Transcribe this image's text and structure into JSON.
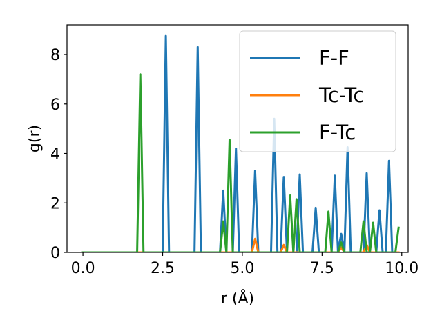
{
  "chart_data": {
    "type": "line",
    "title": "",
    "xlabel": "r (Å)",
    "ylabel": "g(r)",
    "xlim": [
      -0.5,
      10.2
    ],
    "ylim": [
      0,
      9.2
    ],
    "xticks": [
      0.0,
      2.5,
      5.0,
      7.5,
      10.0
    ],
    "xtick_labels": [
      "0.0",
      "2.5",
      "5.0",
      "7.5",
      "10.0"
    ],
    "yticks": [
      0,
      2,
      4,
      6,
      8
    ],
    "ytick_labels": [
      "0",
      "2",
      "4",
      "6",
      "8"
    ],
    "grid": false,
    "legend_position": "top-right",
    "series": [
      {
        "name": "F-F",
        "color": "#1f77b4",
        "x": [
          0.0,
          2.5,
          2.6,
          2.7,
          3.5,
          3.6,
          3.7,
          4.3,
          4.4,
          4.5,
          4.7,
          4.8,
          4.9,
          5.3,
          5.4,
          5.5,
          5.9,
          6.0,
          6.1,
          6.2,
          6.3,
          6.4,
          6.7,
          6.8,
          6.9,
          7.2,
          7.3,
          7.4,
          7.8,
          7.9,
          8.0,
          8.1,
          8.2,
          8.3,
          8.4,
          8.8,
          8.9,
          9.0,
          9.2,
          9.3,
          9.4,
          9.5,
          9.6,
          9.7
        ],
        "y": [
          0,
          0,
          8.75,
          0,
          0,
          8.3,
          0,
          0,
          2.5,
          0,
          0,
          4.2,
          0,
          0,
          3.3,
          0,
          0,
          5.4,
          0,
          0,
          3.05,
          0,
          0,
          3.15,
          0,
          0,
          1.8,
          0,
          0,
          3.1,
          0,
          0.75,
          0,
          4.25,
          0,
          0,
          3.2,
          0,
          0,
          1.7,
          0,
          0,
          3.7,
          0
        ]
      },
      {
        "name": "Tc-Tc",
        "color": "#ff7f0e",
        "x": [
          0.0,
          5.3,
          5.4,
          5.5,
          6.2,
          6.3,
          6.4,
          8.0,
          8.1,
          8.2,
          8.8,
          8.9,
          9.0,
          9.9
        ],
        "y": [
          0,
          0,
          0.55,
          0,
          0,
          0.3,
          0,
          0,
          0.2,
          0,
          0,
          0.3,
          0,
          0
        ]
      },
      {
        "name": "F-Tc",
        "color": "#2ca02c",
        "x": [
          0.0,
          1.7,
          1.8,
          1.9,
          4.3,
          4.4,
          4.5,
          4.6,
          4.7,
          6.4,
          6.5,
          6.6,
          6.7,
          6.8,
          7.6,
          7.7,
          7.8,
          8.0,
          8.1,
          8.2,
          8.7,
          8.8,
          8.9,
          9.0,
          9.1,
          9.2,
          9.8,
          9.9
        ],
        "y": [
          0,
          0,
          7.2,
          0,
          0,
          1.25,
          0,
          4.55,
          0,
          0,
          2.3,
          0,
          2.15,
          0,
          0,
          1.65,
          0,
          0,
          0.4,
          0,
          0,
          1.25,
          0,
          0,
          1.2,
          0,
          0,
          1.0
        ]
      }
    ]
  }
}
